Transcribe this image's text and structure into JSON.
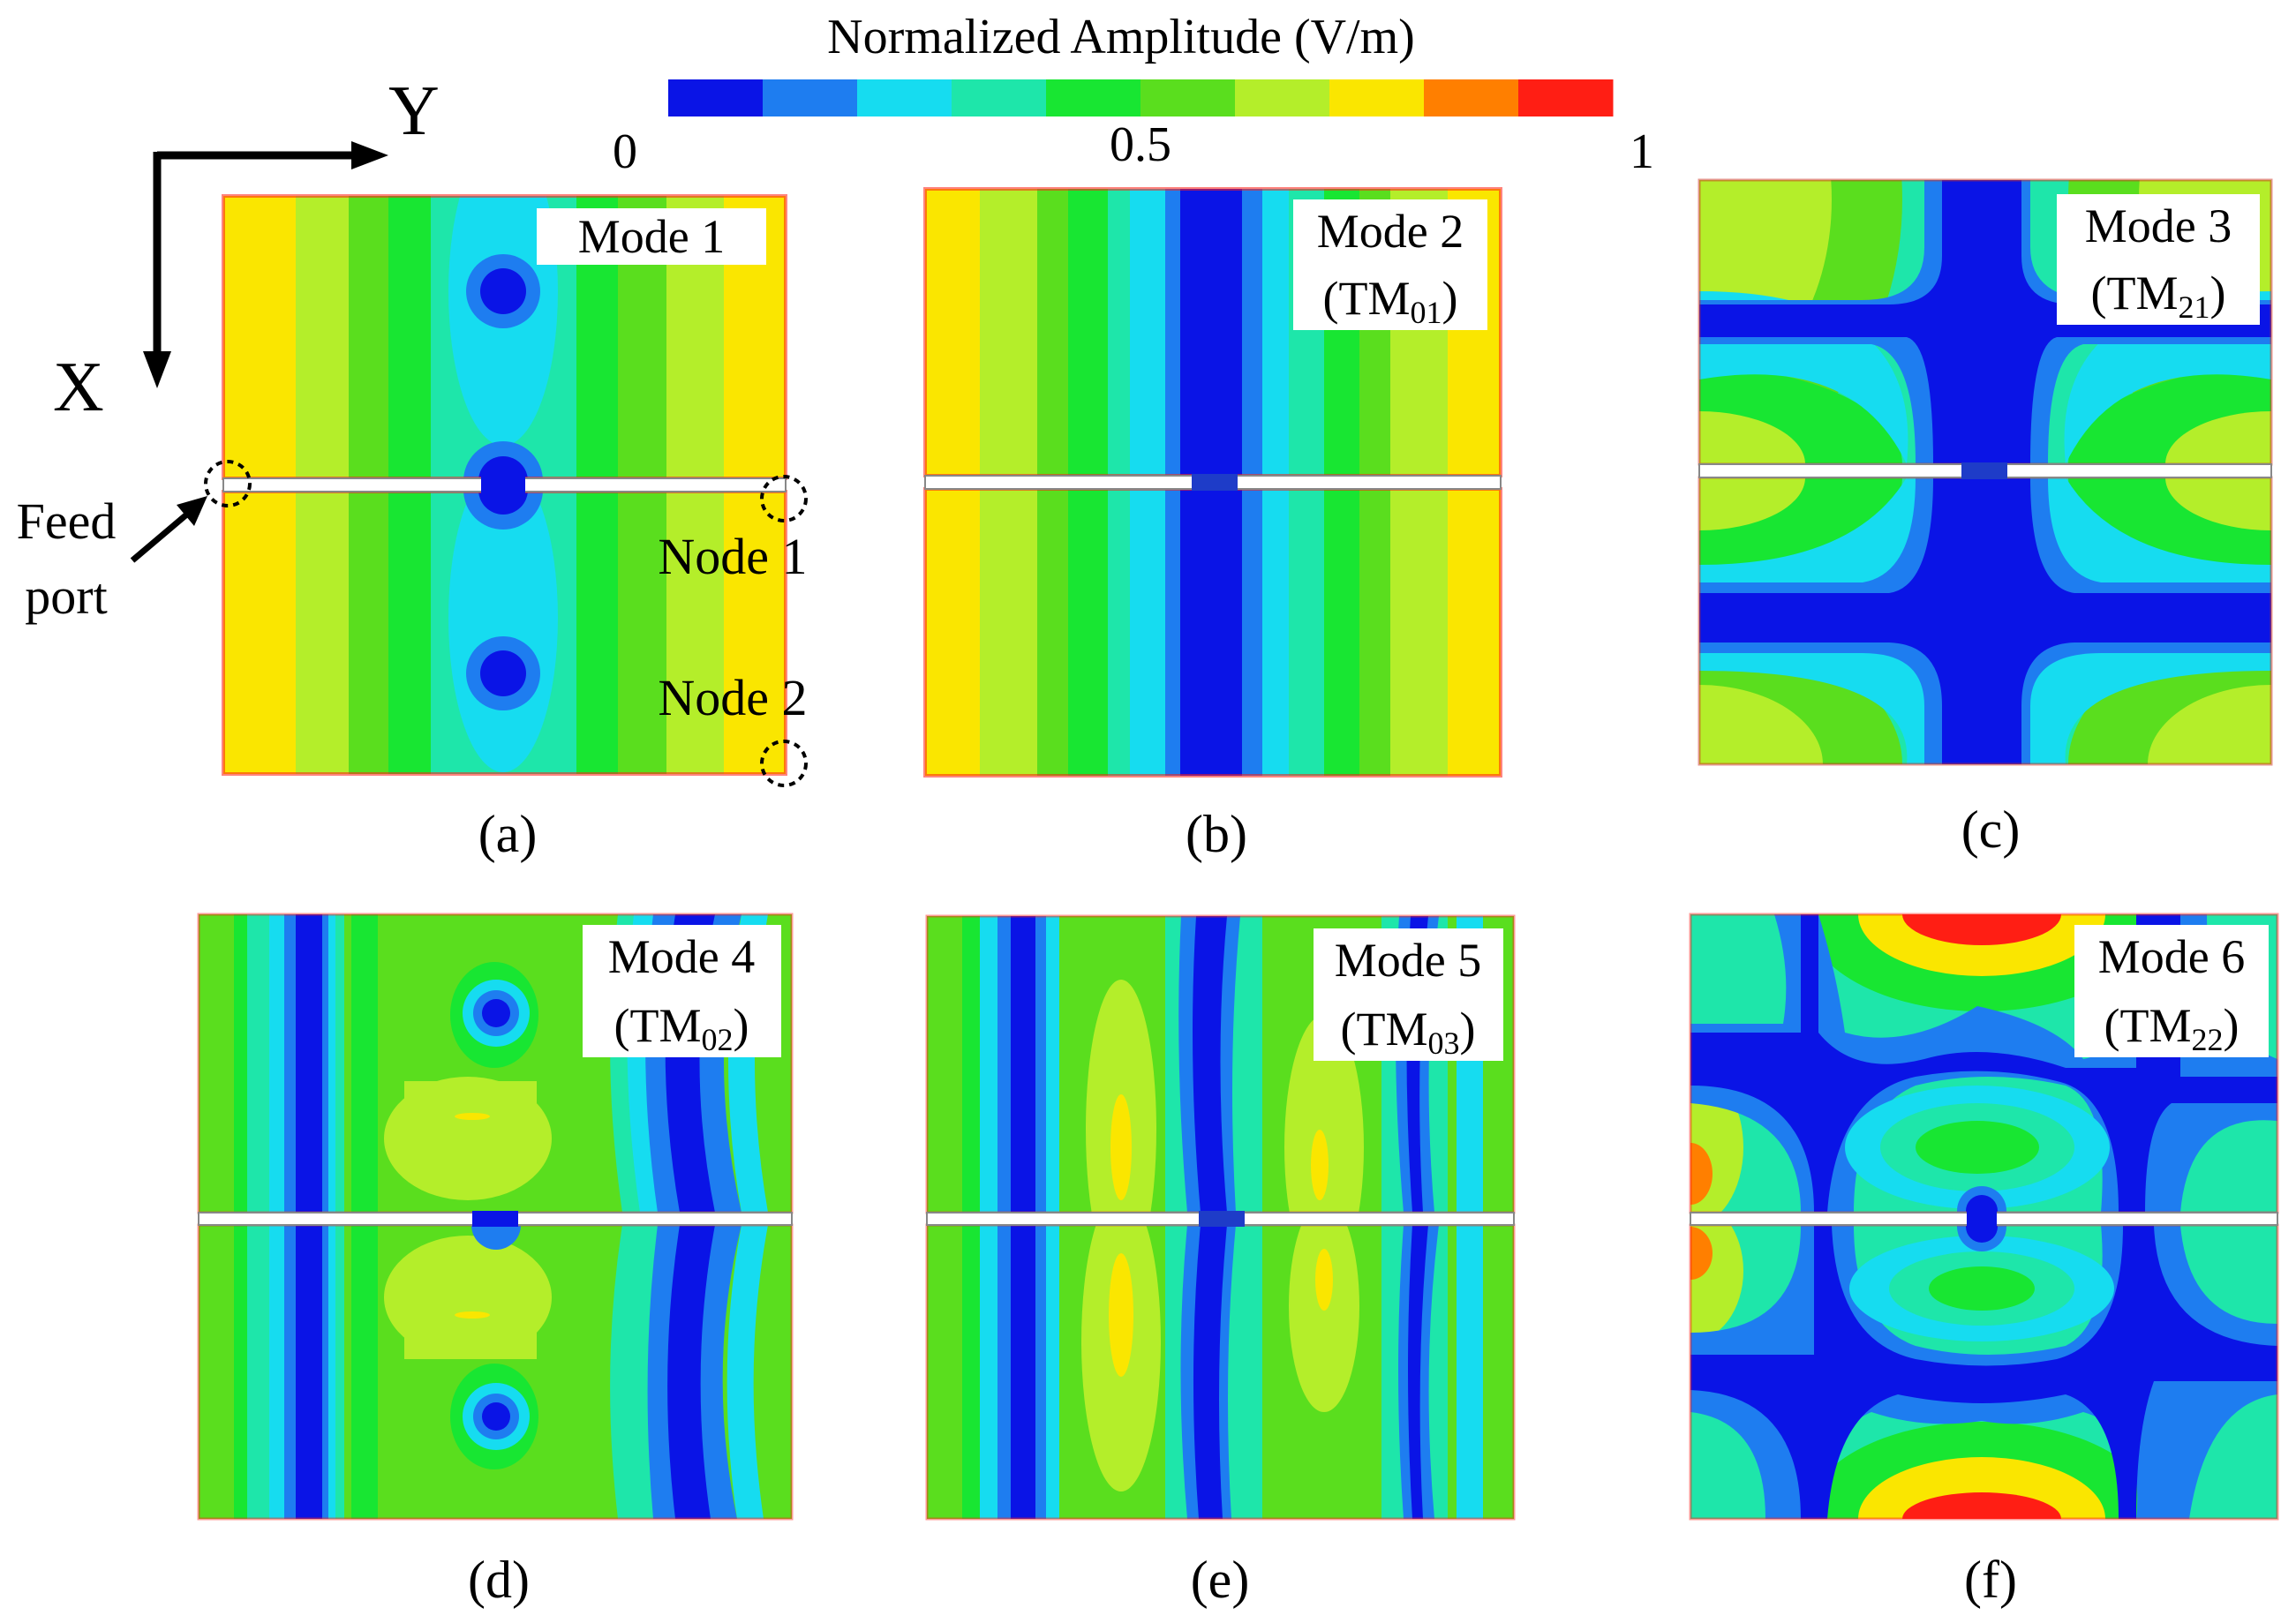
{
  "colorbar": {
    "title": "Normalized Amplitude (V/m)",
    "tick_min": "0",
    "tick_mid": "0.5",
    "tick_max": "1",
    "colors": [
      "#0a14e6",
      "#1e7df0",
      "#16dcf0",
      "#1ee6aa",
      "#18e632",
      "#5ade1e",
      "#b4ee2a",
      "#fae600",
      "#ff7f00",
      "#ff1e14"
    ]
  },
  "axes": {
    "y_label": "Y",
    "x_label": "X"
  },
  "annotations": {
    "feed_port_line1": "Feed",
    "feed_port_line2": "port",
    "node1": "Node 1",
    "node2": "Node 2"
  },
  "panels": [
    {
      "id": "a",
      "caption": "(a)",
      "mode": "Mode 1",
      "tm_prefix": "",
      "tm_sub": "",
      "tm_suffix": ""
    },
    {
      "id": "b",
      "caption": "(b)",
      "mode": "Mode 2",
      "tm_prefix": "(TM",
      "tm_sub": "01",
      "tm_suffix": ")"
    },
    {
      "id": "c",
      "caption": "(c)",
      "mode": "Mode 3",
      "tm_prefix": "(TM",
      "tm_sub": "21",
      "tm_suffix": ")"
    },
    {
      "id": "d",
      "caption": "(d)",
      "mode": "Mode 4",
      "tm_prefix": "(TM",
      "tm_sub": "02",
      "tm_suffix": ")"
    },
    {
      "id": "e",
      "caption": "(e)",
      "mode": "Mode 5",
      "tm_prefix": "(TM",
      "tm_sub": "03",
      "tm_suffix": ")"
    },
    {
      "id": "f",
      "caption": "(f)",
      "mode": "Mode 6",
      "tm_prefix": "(TM",
      "tm_sub": "22",
      "tm_suffix": ")"
    }
  ]
}
